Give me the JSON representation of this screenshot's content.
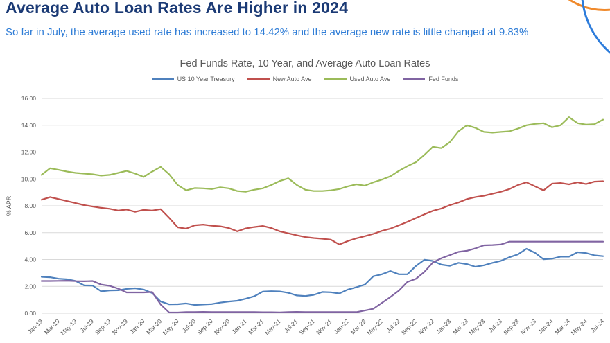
{
  "header": {
    "title": "Average Auto Loan Rates Are Higher in 2024",
    "subtitle": "So far in July, the average used rate has increased to 14.42% and the average new rate is little changed at 9.83%"
  },
  "colors": {
    "title_text": "#1B3A75",
    "subtitle_text": "#2E7CD6",
    "chart_text": "#595959",
    "axis_text": "#595959",
    "gridline": "#D9D9D9",
    "decor_orange": "#F08A2C",
    "decor_blue": "#2D7CDB"
  },
  "chart_data": {
    "type": "line",
    "title": "Fed Funds Rate, 10 Year, and Average Auto Loan Rates",
    "ylabel": "% APR",
    "ylim": [
      0,
      16
    ],
    "ytick_step": 2,
    "ytick_decimals": 2,
    "grid": true,
    "legend_position": "top",
    "x_tick_every": 2,
    "x": [
      "Jan-19",
      "Feb-19",
      "Mar-19",
      "Apr-19",
      "May-19",
      "Jun-19",
      "Jul-19",
      "Aug-19",
      "Sep-19",
      "Oct-19",
      "Nov-19",
      "Dec-19",
      "Jan-20",
      "Feb-20",
      "Mar-20",
      "Apr-20",
      "May-20",
      "Jun-20",
      "Jul-20",
      "Aug-20",
      "Sep-20",
      "Oct-20",
      "Nov-20",
      "Dec-20",
      "Jan-21",
      "Feb-21",
      "Mar-21",
      "Apr-21",
      "May-21",
      "Jun-21",
      "Jul-21",
      "Aug-21",
      "Sep-21",
      "Oct-21",
      "Nov-21",
      "Dec-21",
      "Jan-22",
      "Feb-22",
      "Mar-22",
      "Apr-22",
      "May-22",
      "Jun-22",
      "Jul-22",
      "Aug-22",
      "Sep-22",
      "Oct-22",
      "Nov-22",
      "Dec-22",
      "Jan-23",
      "Feb-23",
      "Mar-23",
      "Apr-23",
      "May-23",
      "Jun-23",
      "Jul-23",
      "Aug-23",
      "Sep-23",
      "Oct-23",
      "Nov-23",
      "Dec-23",
      "Jan-24",
      "Feb-24",
      "Mar-24",
      "Apr-24",
      "May-24",
      "Jun-24",
      "Jul-24"
    ],
    "series": [
      {
        "name": "US 10 Year Treasury",
        "color": "#4F81BD",
        "values": [
          2.71,
          2.68,
          2.57,
          2.53,
          2.4,
          2.07,
          2.06,
          1.63,
          1.7,
          1.71,
          1.81,
          1.86,
          1.76,
          1.5,
          0.87,
          0.66,
          0.67,
          0.73,
          0.62,
          0.65,
          0.68,
          0.79,
          0.87,
          0.93,
          1.08,
          1.26,
          1.61,
          1.64,
          1.62,
          1.52,
          1.32,
          1.28,
          1.37,
          1.58,
          1.56,
          1.47,
          1.76,
          1.93,
          2.13,
          2.75,
          2.9,
          3.14,
          2.9,
          2.9,
          3.52,
          3.98,
          3.89,
          3.62,
          3.53,
          3.75,
          3.66,
          3.46,
          3.57,
          3.75,
          3.9,
          4.17,
          4.38,
          4.8,
          4.5,
          4.02,
          4.06,
          4.21,
          4.21,
          4.54,
          4.48,
          4.31,
          4.25
        ]
      },
      {
        "name": "New Auto Ave",
        "color": "#C0504D",
        "values": [
          8.45,
          8.65,
          8.5,
          8.35,
          8.2,
          8.05,
          7.95,
          7.85,
          7.78,
          7.65,
          7.72,
          7.55,
          7.7,
          7.65,
          7.75,
          7.1,
          6.4,
          6.3,
          6.55,
          6.6,
          6.52,
          6.47,
          6.35,
          6.1,
          6.32,
          6.42,
          6.5,
          6.35,
          6.1,
          5.95,
          5.8,
          5.67,
          5.6,
          5.55,
          5.48,
          5.12,
          5.38,
          5.58,
          5.74,
          5.91,
          6.13,
          6.3,
          6.55,
          6.81,
          7.09,
          7.37,
          7.63,
          7.8,
          8.05,
          8.25,
          8.5,
          8.65,
          8.75,
          8.9,
          9.05,
          9.25,
          9.55,
          9.75,
          9.45,
          9.15,
          9.65,
          9.7,
          9.6,
          9.75,
          9.62,
          9.8,
          9.83
        ]
      },
      {
        "name": "Used Auto Ave",
        "color": "#9BBB59",
        "values": [
          10.3,
          10.8,
          10.68,
          10.55,
          10.45,
          10.4,
          10.35,
          10.25,
          10.3,
          10.45,
          10.6,
          10.4,
          10.15,
          10.55,
          10.9,
          10.35,
          9.55,
          9.15,
          9.32,
          9.3,
          9.25,
          9.38,
          9.3,
          9.1,
          9.05,
          9.2,
          9.3,
          9.55,
          9.85,
          10.05,
          9.55,
          9.2,
          9.1,
          9.1,
          9.15,
          9.25,
          9.45,
          9.6,
          9.5,
          9.75,
          9.95,
          10.2,
          10.6,
          10.95,
          11.25,
          11.8,
          12.4,
          12.3,
          12.75,
          13.55,
          14.0,
          13.8,
          13.5,
          13.45,
          13.5,
          13.55,
          13.75,
          14.0,
          14.1,
          14.15,
          13.85,
          14.0,
          14.6,
          14.15,
          14.05,
          14.08,
          14.42
        ]
      },
      {
        "name": "Fed Funds",
        "color": "#8064A2",
        "values": [
          2.4,
          2.4,
          2.41,
          2.42,
          2.39,
          2.38,
          2.4,
          2.13,
          2.04,
          1.83,
          1.55,
          1.55,
          1.55,
          1.58,
          0.65,
          0.05,
          0.05,
          0.08,
          0.09,
          0.1,
          0.09,
          0.09,
          0.09,
          0.09,
          0.09,
          0.08,
          0.07,
          0.07,
          0.06,
          0.08,
          0.1,
          0.09,
          0.08,
          0.08,
          0.08,
          0.08,
          0.08,
          0.08,
          0.2,
          0.33,
          0.77,
          1.21,
          1.68,
          2.33,
          2.56,
          3.08,
          3.78,
          4.1,
          4.33,
          4.57,
          4.65,
          4.83,
          5.06,
          5.08,
          5.12,
          5.33,
          5.33,
          5.33,
          5.33,
          5.33,
          5.33,
          5.33,
          5.33,
          5.33,
          5.33,
          5.33,
          5.33
        ]
      }
    ]
  }
}
